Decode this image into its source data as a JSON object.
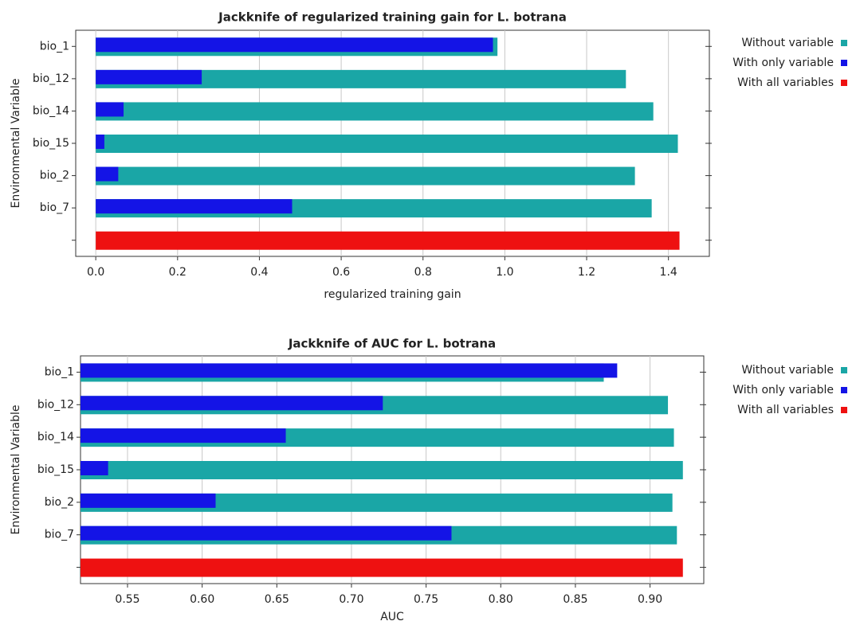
{
  "chart_data": [
    {
      "type": "bar",
      "orientation": "horizontal",
      "title": "Jackknife of regularized training gain for L. botrana",
      "xlabel": "regularized training gain",
      "ylabel": "Environmental Variable",
      "categories": [
        "bio_1",
        "bio_12",
        "bio_14",
        "bio_15",
        "bio_2",
        "bio_7",
        null
      ],
      "series": [
        {
          "name": "Without variable",
          "color": "#1aa6a6",
          "values": [
            0.982,
            1.296,
            1.363,
            1.423,
            1.318,
            1.359,
            null
          ]
        },
        {
          "name": "With only variable",
          "color": "#1414e6",
          "values": [
            0.971,
            0.259,
            0.068,
            0.021,
            0.055,
            0.48,
            null
          ]
        },
        {
          "name": "With all variables",
          "color": "#ee1111",
          "values": [
            null,
            null,
            null,
            null,
            null,
            null,
            1.427
          ]
        }
      ],
      "xlim": [
        -0.049,
        1.5
      ],
      "xticks": [
        {
          "value": 0,
          "label": "0.0"
        },
        0.2,
        0.4,
        0.6,
        0.8,
        {
          "value": 1,
          "label": "1.0"
        },
        1.2,
        1.4
      ],
      "grid": true,
      "legend": "right"
    },
    {
      "type": "bar",
      "orientation": "horizontal",
      "title": "Jackknife of AUC for L. botrana",
      "xlabel": "AUC",
      "ylabel": "Environmental Variable",
      "categories": [
        "bio_1",
        "bio_12",
        "bio_14",
        "bio_15",
        "bio_2",
        "bio_7",
        null
      ],
      "series": [
        {
          "name": "Without variable",
          "color": "#1aa6a6",
          "values": [
            0.869,
            0.912,
            0.916,
            0.922,
            0.915,
            0.918,
            null
          ]
        },
        {
          "name": "With only variable",
          "color": "#1414e6",
          "values": [
            0.878,
            0.721,
            0.656,
            0.537,
            0.609,
            0.767,
            null
          ]
        },
        {
          "name": "With all variables",
          "color": "#ee1111",
          "values": [
            null,
            null,
            null,
            null,
            null,
            null,
            0.922
          ]
        }
      ],
      "xlim": [
        0.5185,
        0.936
      ],
      "xticks": [
        0.55,
        {
          "value": 0.6,
          "label": "0.60"
        },
        0.65,
        {
          "value": 0.7,
          "label": "0.70"
        },
        0.75,
        {
          "value": 0.8,
          "label": "0.80"
        },
        0.85,
        {
          "value": 0.9,
          "label": "0.90"
        }
      ],
      "grid": true,
      "legend": "right"
    }
  ]
}
